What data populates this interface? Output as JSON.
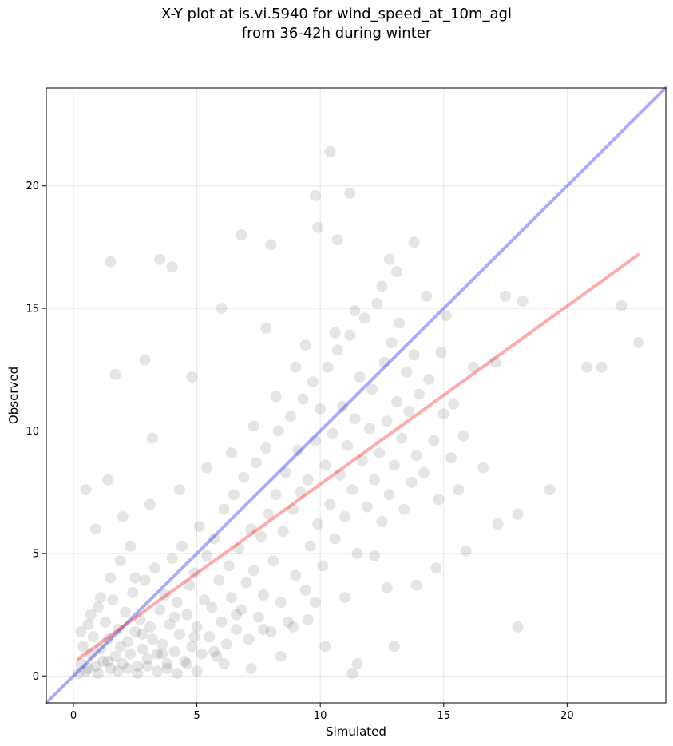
{
  "chart_data": {
    "type": "scatter",
    "title_lines": [
      "X-Y plot at is.vi.5940 for wind_speed_at_10m_agl",
      "from 36-42h during winter"
    ],
    "xlabel": "Simulated",
    "ylabel": "Observed",
    "xlim": [
      -1.1,
      24.0
    ],
    "ylim": [
      -1.1,
      24.0
    ],
    "xticks": [
      0,
      5,
      10,
      15,
      20
    ],
    "yticks": [
      0,
      5,
      10,
      15,
      20
    ],
    "grid": true,
    "point_color": "#000000",
    "one_to_one_line": {
      "x": [
        -1.1,
        24.0
      ],
      "y": [
        -1.1,
        24.0
      ],
      "color": "#0000ff"
    },
    "fit_line": {
      "x": [
        0.2,
        22.9
      ],
      "y": [
        0.7,
        17.2
      ],
      "color": "#ff0000"
    },
    "series": [
      {
        "points": [
          [
            0.3,
            0.5
          ],
          [
            0.4,
            1.2
          ],
          [
            0.5,
            0.2
          ],
          [
            0.6,
            2.1
          ],
          [
            0.7,
            0.9
          ],
          [
            0.8,
            1.6
          ],
          [
            0.9,
            0.4
          ],
          [
            1.0,
            2.8
          ],
          [
            1.1,
            1.1
          ],
          [
            1.2,
            0.6
          ],
          [
            1.3,
            2.2
          ],
          [
            1.4,
            1.5
          ],
          [
            1.5,
            0.3
          ],
          [
            1.6,
            3.1
          ],
          [
            1.7,
            0.8
          ],
          [
            1.8,
            1.9
          ],
          [
            1.9,
            1.2
          ],
          [
            2.0,
            0.5
          ],
          [
            2.1,
            2.6
          ],
          [
            2.2,
            1.4
          ],
          [
            2.3,
            0.9
          ],
          [
            2.4,
            3.4
          ],
          [
            2.5,
            1.8
          ],
          [
            2.6,
            0.4
          ],
          [
            2.7,
            2.3
          ],
          [
            2.8,
            1.1
          ],
          [
            2.9,
            3.9
          ],
          [
            3.0,
            0.7
          ],
          [
            3.1,
            2.0
          ],
          [
            3.2,
            1.5
          ],
          [
            3.3,
            4.4
          ],
          [
            3.4,
            0.9
          ],
          [
            3.5,
            2.7
          ],
          [
            3.6,
            1.3
          ],
          [
            3.7,
            3.3
          ],
          [
            3.8,
            0.5
          ],
          [
            3.9,
            2.1
          ],
          [
            4.0,
            4.8
          ],
          [
            4.1,
            1.0
          ],
          [
            4.2,
            3.0
          ],
          [
            4.3,
            1.7
          ],
          [
            4.4,
            5.3
          ],
          [
            4.5,
            0.6
          ],
          [
            4.6,
            2.5
          ],
          [
            4.7,
            3.7
          ],
          [
            4.8,
            1.2
          ],
          [
            4.9,
            4.2
          ],
          [
            5.0,
            2.0
          ],
          [
            5.1,
            6.1
          ],
          [
            5.2,
            0.9
          ],
          [
            5.3,
            3.1
          ],
          [
            5.4,
            4.9
          ],
          [
            5.5,
            1.6
          ],
          [
            5.6,
            2.8
          ],
          [
            5.7,
            5.6
          ],
          [
            5.8,
            0.8
          ],
          [
            5.9,
            3.9
          ],
          [
            6.0,
            2.2
          ],
          [
            6.1,
            6.8
          ],
          [
            6.2,
            1.3
          ],
          [
            6.3,
            4.5
          ],
          [
            6.4,
            3.2
          ],
          [
            6.5,
            7.4
          ],
          [
            6.6,
            1.9
          ],
          [
            6.7,
            5.2
          ],
          [
            6.8,
            2.7
          ],
          [
            6.9,
            8.1
          ],
          [
            7.0,
            3.8
          ],
          [
            7.1,
            1.5
          ],
          [
            7.2,
            6.0
          ],
          [
            7.3,
            4.3
          ],
          [
            7.4,
            8.7
          ],
          [
            7.5,
            2.4
          ],
          [
            7.6,
            5.7
          ],
          [
            7.7,
            3.3
          ],
          [
            7.8,
            9.3
          ],
          [
            7.9,
            6.6
          ],
          [
            8.0,
            1.8
          ],
          [
            8.1,
            4.7
          ],
          [
            8.2,
            7.4
          ],
          [
            8.3,
            10.0
          ],
          [
            8.4,
            3.0
          ],
          [
            8.5,
            5.9
          ],
          [
            8.6,
            8.3
          ],
          [
            8.7,
            2.2
          ],
          [
            8.8,
            10.6
          ],
          [
            8.9,
            6.8
          ],
          [
            9.0,
            4.1
          ],
          [
            9.1,
            9.2
          ],
          [
            9.2,
            7.5
          ],
          [
            9.3,
            11.3
          ],
          [
            9.4,
            3.5
          ],
          [
            9.5,
            8.0
          ],
          [
            9.6,
            5.3
          ],
          [
            9.7,
            12.0
          ],
          [
            9.8,
            9.6
          ],
          [
            9.9,
            6.2
          ],
          [
            10.0,
            10.9
          ],
          [
            10.1,
            4.5
          ],
          [
            10.2,
            8.6
          ],
          [
            10.3,
            12.6
          ],
          [
            10.4,
            7.0
          ],
          [
            10.5,
            9.9
          ],
          [
            10.6,
            5.6
          ],
          [
            10.7,
            13.3
          ],
          [
            10.8,
            8.2
          ],
          [
            10.9,
            11.0
          ],
          [
            11.0,
            6.5
          ],
          [
            11.1,
            9.4
          ],
          [
            11.2,
            13.9
          ],
          [
            11.3,
            7.6
          ],
          [
            11.4,
            10.5
          ],
          [
            11.5,
            5.0
          ],
          [
            11.6,
            12.2
          ],
          [
            11.7,
            8.8
          ],
          [
            11.8,
            14.6
          ],
          [
            11.9,
            6.9
          ],
          [
            12.0,
            10.1
          ],
          [
            12.1,
            11.7
          ],
          [
            12.2,
            8.0
          ],
          [
            12.3,
            15.2
          ],
          [
            12.4,
            9.1
          ],
          [
            12.5,
            6.3
          ],
          [
            12.6,
            12.8
          ],
          [
            12.7,
            10.4
          ],
          [
            12.8,
            7.4
          ],
          [
            12.9,
            13.6
          ],
          [
            13.0,
            8.6
          ],
          [
            13.1,
            11.2
          ],
          [
            13.2,
            14.4
          ],
          [
            13.3,
            9.7
          ],
          [
            13.4,
            6.8
          ],
          [
            13.5,
            12.4
          ],
          [
            13.6,
            10.8
          ],
          [
            13.7,
            7.9
          ],
          [
            13.8,
            13.1
          ],
          [
            13.9,
            9.0
          ],
          [
            14.0,
            11.5
          ],
          [
            14.2,
            8.3
          ],
          [
            14.4,
            12.1
          ],
          [
            14.6,
            9.6
          ],
          [
            14.8,
            7.2
          ],
          [
            15.0,
            10.7
          ],
          [
            15.3,
            8.9
          ],
          [
            15.6,
            7.6
          ],
          [
            15.8,
            9.8
          ],
          [
            16.2,
            12.6
          ],
          [
            16.6,
            8.5
          ],
          [
            17.2,
            6.2
          ],
          [
            17.5,
            15.5
          ],
          [
            18.0,
            6.6
          ],
          [
            18.2,
            15.3
          ],
          [
            19.3,
            7.6
          ],
          [
            20.8,
            12.6
          ],
          [
            21.4,
            12.6
          ],
          [
            22.2,
            15.1
          ],
          [
            22.9,
            13.6
          ],
          [
            1.5,
            16.9
          ],
          [
            3.5,
            17.0
          ],
          [
            4.0,
            16.7
          ],
          [
            6.8,
            18.0
          ],
          [
            8.0,
            17.6
          ],
          [
            9.8,
            19.6
          ],
          [
            9.9,
            18.3
          ],
          [
            10.4,
            21.4
          ],
          [
            11.2,
            19.7
          ],
          [
            10.7,
            17.8
          ],
          [
            12.8,
            17.0
          ],
          [
            13.8,
            17.7
          ],
          [
            17.1,
            12.8
          ],
          [
            18.0,
            2.0
          ],
          [
            13.0,
            1.2
          ],
          [
            11.5,
            0.5
          ],
          [
            11.3,
            0.1
          ],
          [
            10.2,
            1.2
          ],
          [
            9.5,
            2.3
          ],
          [
            8.4,
            0.8
          ],
          [
            7.2,
            0.3
          ],
          [
            6.1,
            0.5
          ],
          [
            5.0,
            0.2
          ],
          [
            1.7,
            12.3
          ],
          [
            2.9,
            12.9
          ],
          [
            3.2,
            9.7
          ],
          [
            0.5,
            7.6
          ],
          [
            1.4,
            8.0
          ],
          [
            2.5,
            4.0
          ],
          [
            4.8,
            12.2
          ],
          [
            6.0,
            15.0
          ],
          [
            7.8,
            14.2
          ],
          [
            15.1,
            14.7
          ],
          [
            0.2,
            0.1
          ],
          [
            0.6,
            0.3
          ],
          [
            1.0,
            0.1
          ],
          [
            1.4,
            0.6
          ],
          [
            1.8,
            0.2
          ],
          [
            2.2,
            0.3
          ],
          [
            2.6,
            0.1
          ],
          [
            3.0,
            0.4
          ],
          [
            3.4,
            0.2
          ],
          [
            3.8,
            0.3
          ],
          [
            4.2,
            0.1
          ],
          [
            4.6,
            0.5
          ],
          [
            0.3,
            1.8
          ],
          [
            0.7,
            2.5
          ],
          [
            1.1,
            3.2
          ],
          [
            1.5,
            4.0
          ],
          [
            1.9,
            4.7
          ],
          [
            2.3,
            5.3
          ],
          [
            0.9,
            6.0
          ],
          [
            2.0,
            6.5
          ],
          [
            3.1,
            7.0
          ],
          [
            4.3,
            7.6
          ],
          [
            5.4,
            8.5
          ],
          [
            6.4,
            9.1
          ],
          [
            7.3,
            10.2
          ],
          [
            8.2,
            11.4
          ],
          [
            9.0,
            12.6
          ],
          [
            9.4,
            13.5
          ],
          [
            10.6,
            14.0
          ],
          [
            11.4,
            14.9
          ],
          [
            12.5,
            15.9
          ],
          [
            13.1,
            16.5
          ],
          [
            14.3,
            15.5
          ],
          [
            14.9,
            13.2
          ],
          [
            15.4,
            11.1
          ],
          [
            15.9,
            5.1
          ],
          [
            14.7,
            4.4
          ],
          [
            13.9,
            3.7
          ],
          [
            12.7,
            3.6
          ],
          [
            12.2,
            4.9
          ],
          [
            11.0,
            3.2
          ],
          [
            9.8,
            3.0
          ],
          [
            8.9,
            2.0
          ],
          [
            7.7,
            1.9
          ],
          [
            6.6,
            2.5
          ],
          [
            5.7,
            1.0
          ],
          [
            4.9,
            1.6
          ],
          [
            4.1,
            2.4
          ],
          [
            3.6,
            0.9
          ],
          [
            2.8,
            1.7
          ]
        ]
      }
    ]
  }
}
